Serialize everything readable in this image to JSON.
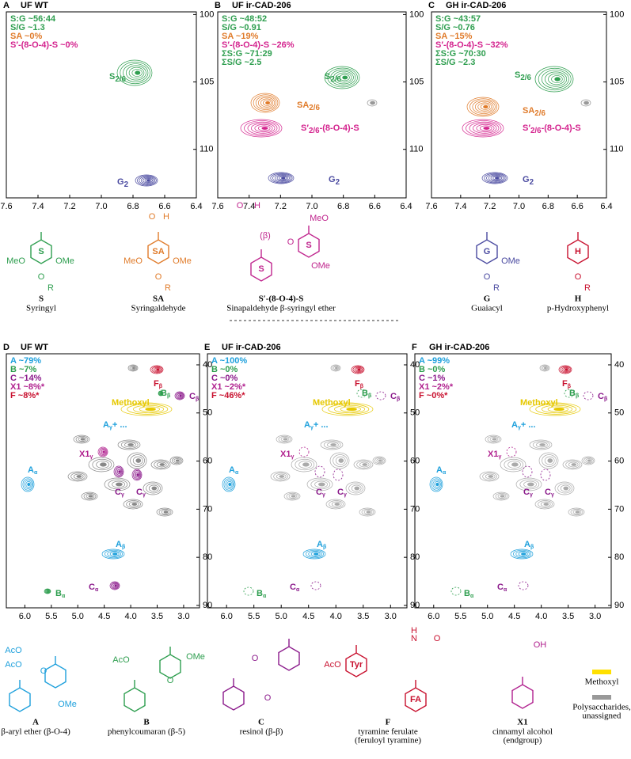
{
  "top_axis": {
    "xlim": [
      7.6,
      6.4
    ],
    "ylim": [
      99.8,
      113.6
    ],
    "xticks": [
      7.6,
      7.4,
      7.2,
      {
        "value": 7,
        "label": "7.0"
      },
      6.8,
      6.6,
      6.4
    ],
    "yticks": [
      100,
      105,
      110
    ]
  },
  "top_panels": [
    {
      "letter": "A",
      "title": "UF WT",
      "notes": [
        {
          "text": "S:G ~56:44",
          "color": "#2e9e4f"
        },
        {
          "text": "S/G ~1.3",
          "color": "#2e9e4f"
        },
        {
          "text": "SA ~0%",
          "color": "#e07b2a"
        },
        {
          "text": "S′-(8-O-4)-S ~0%",
          "color": "#d4238e"
        }
      ],
      "peaks": [
        {
          "label": "S",
          "sub": "2/6",
          "color": "#2e9e4f"
        },
        {
          "label": "G",
          "sub": "2",
          "color": "#4a4aa0"
        }
      ]
    },
    {
      "letter": "B",
      "title": "UF ir-CAD-206",
      "notes": [
        {
          "text": "S:G ~48:52",
          "color": "#2e9e4f"
        },
        {
          "text": "S/G ~0.91",
          "color": "#2e9e4f"
        },
        {
          "text": "SA ~19%",
          "color": "#e07b2a"
        },
        {
          "text": "S′-(8-O-4)-S ~26%",
          "color": "#d4238e"
        },
        {
          "text": "ΣS:G ~71:29",
          "color": "#2e9e4f"
        },
        {
          "text": "ΣS/G ~2.5",
          "color": "#2e9e4f"
        }
      ],
      "peaks": [
        {
          "label": "S",
          "sub": "2/6",
          "color": "#2e9e4f"
        },
        {
          "label": "SA",
          "sub": "2/6",
          "color": "#e07b2a"
        },
        {
          "label": "S′",
          "sub": "2/6",
          "suffix": "-(8-O-4)-S",
          "color": "#d4238e"
        },
        {
          "label": "G",
          "sub": "2",
          "color": "#4a4aa0"
        }
      ]
    },
    {
      "letter": "C",
      "title": "GH ir-CAD-206",
      "notes": [
        {
          "text": "S:G ~43:57",
          "color": "#2e9e4f"
        },
        {
          "text": "S/G ~0.76",
          "color": "#2e9e4f"
        },
        {
          "text": "SA ~15%",
          "color": "#e07b2a"
        },
        {
          "text": "S′-(8-O-4)-S ~32%",
          "color": "#d4238e"
        },
        {
          "text": "ΣS:G ~70:30",
          "color": "#2e9e4f"
        },
        {
          "text": "ΣS/G ~2.3",
          "color": "#2e9e4f"
        }
      ],
      "peaks": [
        {
          "label": "S",
          "sub": "2/6",
          "color": "#2e9e4f"
        },
        {
          "label": "SA",
          "sub": "2/6",
          "color": "#e07b2a"
        },
        {
          "label": "S′",
          "sub": "2/6",
          "suffix": "-(8-O-4)-S",
          "color": "#d4238e"
        },
        {
          "label": "G",
          "sub": "2",
          "color": "#4a4aa0"
        }
      ]
    }
  ],
  "top_structures": [
    {
      "code": "S",
      "name": "Syringyl",
      "color": "#2e9e4f",
      "rings": [
        "S"
      ],
      "subs": [
        "MeO",
        "OMe",
        "O",
        "R"
      ]
    },
    {
      "code": "SA",
      "name": "Syringaldehyde",
      "color": "#e07b2a",
      "rings": [
        "SA"
      ],
      "subs": [
        "O",
        "H",
        "MeO",
        "OMe",
        "O",
        "R"
      ]
    },
    {
      "code": "S′-(8-O-4)-S",
      "name": "Sinapaldehyde β-syringyl ether",
      "color": "#c0268e",
      "rings": [
        "S",
        "S"
      ],
      "subs": [
        "O",
        "H",
        "MeO",
        "(β)",
        "O",
        "OMe"
      ]
    },
    {
      "code": "G",
      "name": "Guaiacyl",
      "color": "#4a4aa0",
      "rings": [
        "G"
      ],
      "subs": [
        "OMe",
        "O",
        "R"
      ]
    },
    {
      "code": "H",
      "name": "p-Hydroxyphenyl",
      "color": "#c8102e",
      "rings": [
        "H"
      ],
      "subs": [
        "O",
        "R"
      ]
    }
  ],
  "bottom_axis": {
    "xlim": [
      6.35,
      2.7
    ],
    "ylim": [
      37.7,
      90.5
    ],
    "xticks": [
      {
        "value": 6,
        "label": "6.0"
      },
      5.5,
      {
        "value": 5,
        "label": "5.0"
      },
      4.5,
      {
        "value": 4,
        "label": "4.0"
      },
      3.5,
      {
        "value": 3,
        "label": "3.0"
      }
    ],
    "yticks": [
      40,
      50,
      60,
      70,
      80,
      90
    ]
  },
  "bottom_peaks": [
    {
      "label": "F",
      "sub": "β",
      "color": "#c8102e"
    },
    {
      "label": "B",
      "sub": "β",
      "color": "#2e9e4f"
    },
    {
      "label": "C",
      "sub": "β",
      "color": "#8b1a8b"
    },
    {
      "label": "Methoxyl",
      "color": "#e6c800"
    },
    {
      "label": "A",
      "sub": "γ",
      "suffix": "+ ...",
      "color": "#1ea0dc"
    },
    {
      "label": "X1",
      "sub": "γ",
      "color": "#b0208e"
    },
    {
      "label": "C",
      "sub": "γ",
      "color": "#8b1a8b"
    },
    {
      "label": "C",
      "sub": "γ",
      "color": "#8b1a8b"
    },
    {
      "label": "A",
      "sub": "α",
      "color": "#1ea0dc"
    },
    {
      "label": "A",
      "sub": "β",
      "color": "#1ea0dc"
    },
    {
      "label": "C",
      "sub": "α",
      "color": "#8b1a8b"
    },
    {
      "label": "B",
      "sub": "α",
      "color": "#2e9e4f"
    }
  ],
  "bottom_panels": [
    {
      "letter": "D",
      "title": "UF WT",
      "notes": [
        {
          "text": "A ~79%",
          "color": "#1ea0dc"
        },
        {
          "text": "B ~7%",
          "color": "#2e9e4f"
        },
        {
          "text": "C ~14%",
          "color": "#8b1a8b"
        },
        {
          "text": "X1 ~8%*",
          "color": "#b0208e"
        },
        {
          "text": "F ~8%*",
          "color": "#c8102e"
        }
      ]
    },
    {
      "letter": "E",
      "title": "UF ir-CAD-206",
      "notes": [
        {
          "text": "A ~100%",
          "color": "#1ea0dc"
        },
        {
          "text": "B ~0%",
          "color": "#2e9e4f"
        },
        {
          "text": "C ~0%",
          "color": "#8b1a8b"
        },
        {
          "text": "X1 ~2%*",
          "color": "#b0208e"
        },
        {
          "text": "F ~46%*",
          "color": "#c8102e"
        }
      ]
    },
    {
      "letter": "F",
      "title": "GH ir-CAD-206",
      "notes": [
        {
          "text": "A ~99%",
          "color": "#1ea0dc"
        },
        {
          "text": "B ~0%",
          "color": "#2e9e4f"
        },
        {
          "text": "C ~1%",
          "color": "#8b1a8b"
        },
        {
          "text": "X1 ~2%*",
          "color": "#b0208e"
        },
        {
          "text": "F ~0%*",
          "color": "#c8102e"
        }
      ]
    }
  ],
  "bottom_structures": [
    {
      "code": "A",
      "name": "β-aryl ether (β-O-4)",
      "color": "#1ea0dc",
      "rings": [
        "",
        ""
      ],
      "subs": [
        "AcO",
        "AcO",
        "O",
        "OMe"
      ]
    },
    {
      "code": "B",
      "name": "phenylcoumaran (β-5)",
      "color": "#2e9e4f",
      "rings": [
        "",
        ""
      ],
      "subs": [
        "AcO",
        "O",
        "OMe"
      ]
    },
    {
      "code": "C",
      "name": "resinol (β-β)",
      "color": "#8b1a8b",
      "rings": [
        "",
        ""
      ],
      "subs": [
        "O",
        "O"
      ]
    },
    {
      "code": "F",
      "name": "tyramine ferulate",
      "name2": "(feruloyl tyramine)",
      "color": "#c8102e",
      "rings": [
        "Tyr",
        "FA"
      ],
      "subs": [
        "AcO",
        "N",
        "H",
        "O"
      ]
    },
    {
      "code": "X1",
      "name": "cinnamyl alcohol",
      "name2": "(endgroup)",
      "color": "#b0208e",
      "rings": [
        ""
      ],
      "subs": [
        "OH"
      ]
    }
  ],
  "legend": [
    {
      "label": "Methoxyl",
      "color": "#ffe000"
    },
    {
      "label": "Polysaccharides,",
      "label2": "unassigned",
      "color": "#999999"
    }
  ]
}
